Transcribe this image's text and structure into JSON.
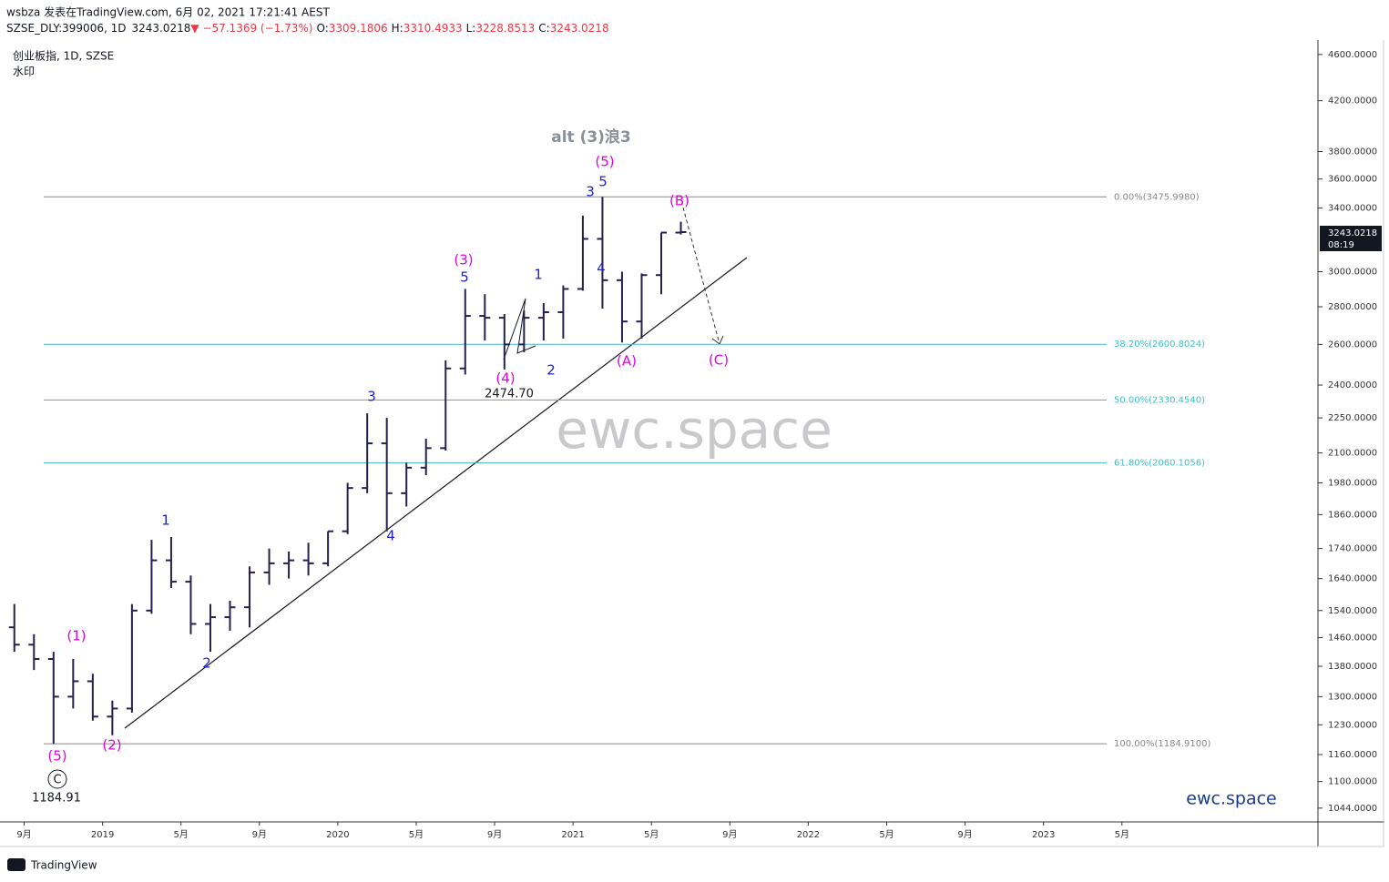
{
  "header": {
    "publisher": "wsbza 发表在TradingView.com, 6月 02, 2021 17:21:41 AEST"
  },
  "chart_data": {
    "type": "ohlc",
    "title": "创业板指, 1D, SZSE",
    "subtitle": "水印",
    "symbol": "SZSE_DLY:399006, 1D",
    "last": "3243.0218",
    "change": "▼ −57.1369 (−1.73%)",
    "ohlc_labels": [
      {
        "k": "O:",
        "v": "3309.1806"
      },
      {
        "k": "H:",
        "v": "3310.4933"
      },
      {
        "k": "L:",
        "v": "3228.8513"
      },
      {
        "k": "C:",
        "v": "3243.0218"
      }
    ],
    "countdown": "08:19",
    "color": "#24214d",
    "log_scale": true,
    "x": [
      "2018-08",
      "2018-09",
      "2018-10",
      "2018-11",
      "2018-12",
      "2019-01",
      "2019-02",
      "2019-03",
      "2019-04",
      "2019-05",
      "2019-06",
      "2019-07",
      "2019-08",
      "2019-09",
      "2019-10",
      "2019-11",
      "2019-12",
      "2020-01",
      "2020-02",
      "2020-03",
      "2020-04",
      "2020-05",
      "2020-06",
      "2020-07",
      "2020-08",
      "2020-09",
      "2020-10",
      "2020-11",
      "2020-12",
      "2021-01",
      "2021-02",
      "2021-03",
      "2021-04",
      "2021-05",
      "2021-06"
    ],
    "open": [
      1490,
      1440,
      1400,
      1300,
      1340,
      1250,
      1270,
      1540,
      1700,
      1630,
      1500,
      1520,
      1550,
      1660,
      1690,
      1700,
      1690,
      1800,
      1960,
      2140,
      1940,
      2040,
      2120,
      2480,
      2750,
      2740,
      2600,
      2740,
      2770,
      2900,
      3200,
      2950,
      2720,
      2980,
      3240
    ],
    "high": [
      1560,
      1470,
      1420,
      1400,
      1360,
      1290,
      1560,
      1770,
      1780,
      1650,
      1560,
      1570,
      1680,
      1740,
      1730,
      1760,
      1800,
      1980,
      2270,
      2250,
      2060,
      2160,
      2520,
      2900,
      2870,
      2760,
      2780,
      2820,
      2920,
      3350,
      3476,
      3000,
      2990,
      3240,
      3310
    ],
    "low": [
      1420,
      1370,
      1185,
      1270,
      1240,
      1205,
      1260,
      1530,
      1610,
      1470,
      1420,
      1480,
      1490,
      1620,
      1640,
      1650,
      1680,
      1790,
      1940,
      1800,
      1890,
      2010,
      2110,
      2450,
      2620,
      2475,
      2560,
      2620,
      2630,
      2890,
      2790,
      2610,
      2630,
      2870,
      3228
    ],
    "close": [
      1440,
      1400,
      1300,
      1340,
      1250,
      1270,
      1540,
      1700,
      1630,
      1500,
      1520,
      1550,
      1660,
      1690,
      1700,
      1690,
      1800,
      1960,
      2140,
      1940,
      2040,
      2120,
      2480,
      2750,
      2740,
      2600,
      2740,
      2770,
      2900,
      3200,
      2950,
      2720,
      2980,
      3240,
      3243
    ],
    "xlim": [
      "2018-08",
      "2024-03"
    ],
    "xticks": [
      {
        "value": "2018-09",
        "label": "9月"
      },
      {
        "value": "2019-01",
        "label": "2019"
      },
      {
        "value": "2019-05",
        "label": "5月"
      },
      {
        "value": "2019-09",
        "label": "9月"
      },
      {
        "value": "2020-01",
        "label": "2020"
      },
      {
        "value": "2020-05",
        "label": "5月"
      },
      {
        "value": "2020-09",
        "label": "9月"
      },
      {
        "value": "2021-01",
        "label": "2021"
      },
      {
        "value": "2021-05",
        "label": "5月"
      },
      {
        "value": "2021-09",
        "label": "9月"
      },
      {
        "value": "2022-01",
        "label": "2022"
      },
      {
        "value": "2022-05",
        "label": "5月"
      },
      {
        "value": "2022-09",
        "label": "9月"
      },
      {
        "value": "2023-01",
        "label": "2023"
      },
      {
        "value": "2023-05",
        "label": "5月"
      }
    ],
    "ylim": [
      1016,
      4707
    ],
    "yticks": [
      {
        "value": 4600,
        "label": "4600.0000"
      },
      {
        "value": 4200,
        "label": "4200.0000"
      },
      {
        "value": 3800,
        "label": "3800.0000"
      },
      {
        "value": 3600,
        "label": "3600.0000"
      },
      {
        "value": 3400,
        "label": "3400.0000"
      },
      {
        "value": 3000,
        "label": "3000.0000"
      },
      {
        "value": 2800,
        "label": "2800.0000"
      },
      {
        "value": 2600,
        "label": "2600.0000"
      },
      {
        "value": 2400,
        "label": "2400.0000"
      },
      {
        "value": 2250,
        "label": "2250.0000"
      },
      {
        "value": 2100,
        "label": "2100.0000"
      },
      {
        "value": 1980,
        "label": "1980.0000"
      },
      {
        "value": 1860,
        "label": "1860.0000"
      },
      {
        "value": 1740,
        "label": "1740.0000"
      },
      {
        "value": 1640,
        "label": "1640.0000"
      },
      {
        "value": 1540,
        "label": "1540.0000"
      },
      {
        "value": 1460,
        "label": "1460.0000"
      },
      {
        "value": 1380,
        "label": "1380.0000"
      },
      {
        "value": 1300,
        "label": "1300.0000"
      },
      {
        "value": 1230,
        "label": "1230.0000"
      },
      {
        "value": 1160,
        "label": "1160.0000"
      },
      {
        "value": 1100,
        "label": "1100.0000"
      },
      {
        "value": 1044,
        "label": "1044.0000"
      }
    ],
    "fib_levels": [
      {
        "label": "0.00%(3475.9980)",
        "value": 3475.998,
        "color": "#888888"
      },
      {
        "label": "38.20%(2600.8024)",
        "value": 2600.8024,
        "color": "#3fbfc4"
      },
      {
        "label": "50.00%(2330.4540)",
        "value": 2330.454,
        "color": "#3fbfc4"
      },
      {
        "label": "61.80%(2060.1056)",
        "value": 2060.1056,
        "color": "#3fbfc4"
      },
      {
        "label": "100.00%(1184.9100)",
        "value": 1184.91,
        "color": "#888888"
      }
    ],
    "annotations": [
      {
        "text": "(1)",
        "color": "#e000e0"
      },
      {
        "text": "(2)",
        "color": "#e000e0"
      },
      {
        "text": "(5)",
        "color": "#e000e0"
      },
      {
        "text": "C",
        "color": "#131722"
      },
      {
        "text": "1184.91",
        "color": "#131722"
      },
      {
        "text": "1",
        "color": "#1f1fcc"
      },
      {
        "text": "2",
        "color": "#1f1fcc"
      },
      {
        "text": "3",
        "color": "#1f1fcc"
      },
      {
        "text": "4",
        "color": "#1f1fcc"
      },
      {
        "text": "(3)",
        "color": "#e000e0"
      },
      {
        "text": "5",
        "color": "#1f1fcc"
      },
      {
        "text": "(4)",
        "color": "#e000e0"
      },
      {
        "text": "2474.70",
        "color": "#131722"
      },
      {
        "text": "1",
        "color": "#1f1fcc"
      },
      {
        "text": "2",
        "color": "#1f1fcc"
      },
      {
        "text": "3",
        "color": "#1f1fcc"
      },
      {
        "text": "5",
        "color": "#1f1fcc"
      },
      {
        "text": "(5)",
        "color": "#e000e0"
      },
      {
        "text": "4",
        "color": "#1f1fcc"
      },
      {
        "text": "(A)",
        "color": "#e000e0"
      },
      {
        "text": "(B)",
        "color": "#e000e0"
      },
      {
        "text": "(C)",
        "color": "#e000e0"
      },
      {
        "text": "alt (3)浪3",
        "color": "#8a8f99"
      }
    ],
    "watermark": "ewc.space",
    "brand": "ewc.space"
  },
  "footer": {
    "logo": "TradingView"
  }
}
